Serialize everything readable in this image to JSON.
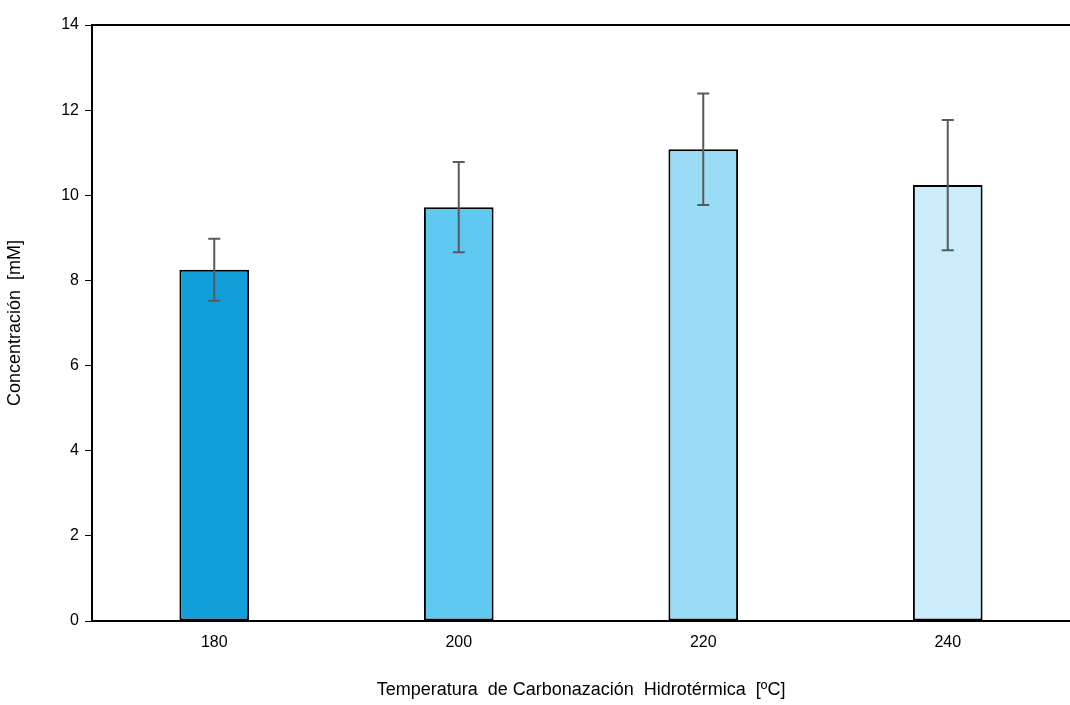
{
  "chart_data": {
    "type": "bar",
    "xlabel": "Temperatura  de Carbonazación  Hidrotérmica  [ºC]",
    "ylabel": "Concentración  [mM]",
    "categories": [
      "180",
      "200",
      "220",
      "240"
    ],
    "values": [
      8.25,
      9.72,
      11.08,
      10.24
    ],
    "errors": [
      0.73,
      1.06,
      1.31,
      1.53
    ],
    "colors": [
      "#129fd9",
      "#5fc9f1",
      "#9adcf5",
      "#cbecfa"
    ],
    "ylim": [
      0,
      14
    ],
    "yticks": [
      0,
      2,
      4,
      6,
      8,
      10,
      12,
      14
    ],
    "grid": false,
    "legend": false
  }
}
